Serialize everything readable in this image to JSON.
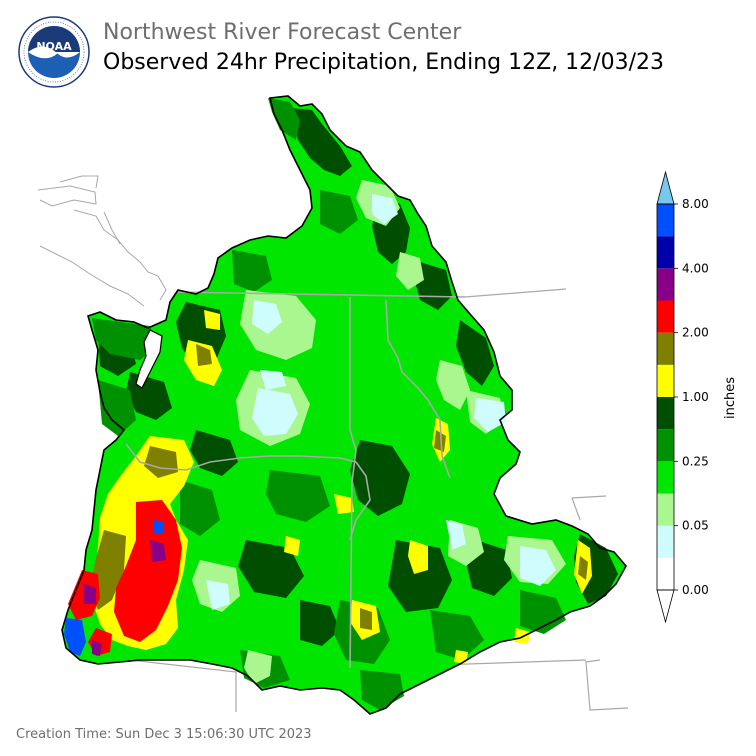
{
  "header": {
    "agency": "Northwest River Forecast Center",
    "product": "Observed 24hr Precipitation, Ending 12Z, 12/03/23"
  },
  "logo": {
    "text": "NOAA",
    "ring_text": "NATIONAL OCEANIC AND ATMOSPHERIC ADMINISTRATION · U.S. DEPARTMENT OF COMMERCE",
    "icon": "noaa-logo-icon"
  },
  "legend": {
    "units": "inches",
    "ticks": [
      "0.00",
      "0.05",
      "0.25",
      "1.00",
      "2.00",
      "4.00",
      "8.00"
    ],
    "colors": [
      "#ffffff",
      "#cffcfc",
      "#aaf78f",
      "#00e600",
      "#009100",
      "#004f00",
      "#ffff00",
      "#7f7f00",
      "#ff0000",
      "#880088",
      "#0000aa",
      "#0050ff"
    ],
    "over_color": "#78c8ee",
    "under_color": "#ffffff"
  },
  "footer": {
    "creation": "Creation Time: Sun Dec 3 15:06:30 UTC 2023"
  }
}
